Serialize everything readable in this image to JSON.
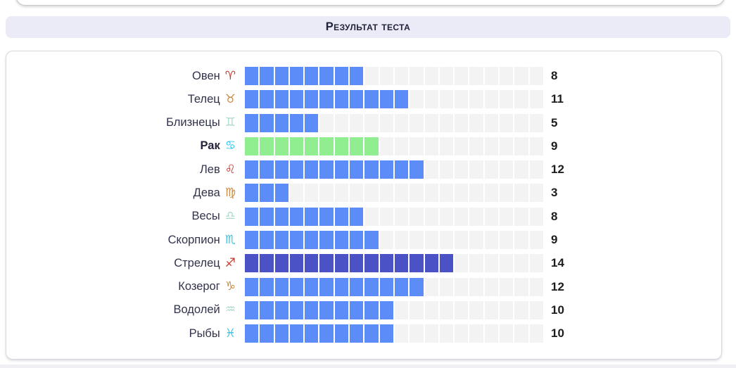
{
  "header": {
    "title": "Результат теста"
  },
  "chart_data": {
    "type": "bar",
    "orientation": "horizontal",
    "title": "Результат теста",
    "categories": [
      "Овен",
      "Телец",
      "Близнецы",
      "Рак",
      "Лев",
      "Дева",
      "Весы",
      "Скорпион",
      "Стрелец",
      "Козерог",
      "Водолей",
      "Рыбы"
    ],
    "values": [
      8,
      11,
      5,
      9,
      12,
      3,
      8,
      9,
      14,
      12,
      10,
      10
    ],
    "xlim": [
      0,
      20
    ],
    "segments_per_bar": 20,
    "highlighted_category": "Рак",
    "legend": "none",
    "grid": "off"
  },
  "rows_meta": [
    {
      "symbol": "♈",
      "icon": "aries",
      "symbol_color": "#c13a30",
      "fill": "default",
      "bold": false
    },
    {
      "symbol": "♉",
      "icon": "taurus",
      "symbol_color": "#c98a45",
      "fill": "default",
      "bold": false
    },
    {
      "symbol": "♊",
      "icon": "gemini",
      "symbol_color": "#abd9c8",
      "fill": "default",
      "bold": false
    },
    {
      "symbol": "♋",
      "icon": "cancer",
      "symbol_color": "#33c5f0",
      "fill": "highlight",
      "bold": true
    },
    {
      "symbol": "♌",
      "icon": "leo",
      "symbol_color": "#c13a30",
      "fill": "default",
      "bold": false
    },
    {
      "symbol": "♍",
      "icon": "virgo",
      "symbol_color": "#c98a45",
      "fill": "default",
      "bold": false
    },
    {
      "symbol": "♎",
      "icon": "libra",
      "symbol_color": "#abd9c8",
      "fill": "default",
      "bold": false
    },
    {
      "symbol": "♏",
      "icon": "scorpio",
      "symbol_color": "#33c3e8",
      "fill": "default",
      "bold": false
    },
    {
      "symbol": "♐",
      "icon": "sagittarius",
      "symbol_color": "#c13a30",
      "fill": "top",
      "bold": false
    },
    {
      "symbol": "♑",
      "icon": "capricorn",
      "symbol_color": "#c98a45",
      "fill": "default",
      "bold": false
    },
    {
      "symbol": "♒",
      "icon": "aquarius",
      "symbol_color": "#a9d8c6",
      "fill": "default",
      "bold": false
    },
    {
      "symbol": "♓",
      "icon": "pisces",
      "symbol_color": "#33c3e8",
      "fill": "default",
      "bold": false
    }
  ],
  "bar": {
    "segments": 20,
    "colors": {
      "default": "#5b8cf8",
      "highlight": "#90ee90",
      "top": "#4a52c5",
      "empty": "#f3f3f3"
    }
  }
}
